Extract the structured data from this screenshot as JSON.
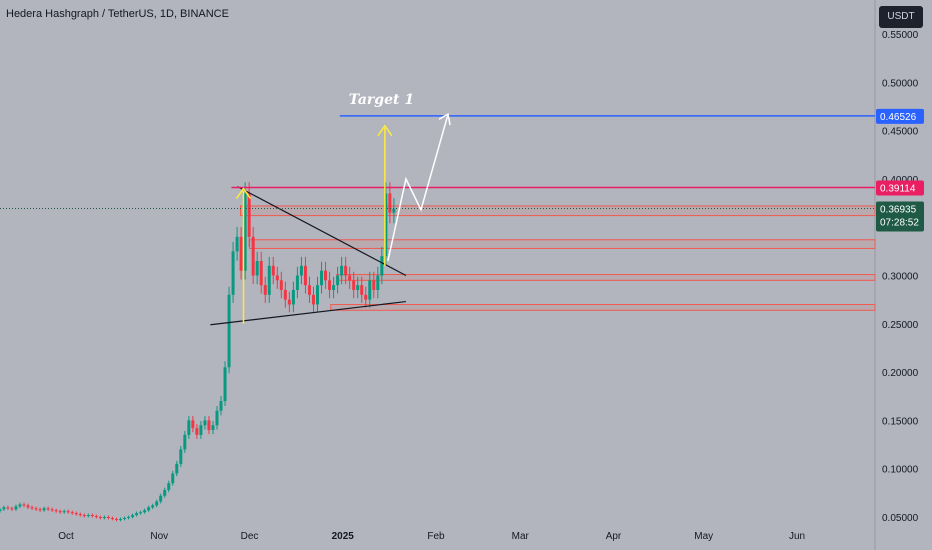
{
  "header": {
    "title": "Hedera Hashgraph / TetherUS, 1D, BINANCE",
    "currency_button": "USDT"
  },
  "colors": {
    "background": "#b2b5be",
    "up": "#089981",
    "down": "#f23645",
    "blue_line": "#2962ff",
    "pink_line": "#e91e63",
    "price_badge": "#1e5a46",
    "zone": "#f05a50",
    "yellow": "#ffeb3b",
    "white": "#ffffff",
    "trendline": "#131722"
  },
  "chart_data": {
    "type": "candlestick",
    "x_axis_labels": [
      "Oct",
      "Nov",
      "Dec",
      "2025",
      "Feb",
      "Mar",
      "Apr",
      "May",
      "Jun"
    ],
    "y_axis_labels": [
      "0.55000",
      "0.50000",
      "0.45000",
      "0.40000",
      "0.30000",
      "0.25000",
      "0.20000",
      "0.15000",
      "0.10000",
      "0.05000"
    ],
    "y_range": [
      0.04,
      0.56
    ],
    "x_range_dates": [
      "2024-09-01",
      "2025-06-25"
    ],
    "price_levels": [
      {
        "name": "target",
        "value": 0.46526,
        "color": "#2962ff"
      },
      {
        "name": "resistance",
        "value": 0.39114,
        "color": "#e91e63"
      }
    ],
    "last_price": {
      "value": "0.36935",
      "countdown": "07:28:52"
    },
    "annotation": {
      "text": "Target 1"
    },
    "support_resistance_zones": [
      {
        "low": 0.362,
        "high": 0.372
      },
      {
        "low": 0.328,
        "high": 0.337
      },
      {
        "low": 0.295,
        "high": 0.301
      },
      {
        "low": 0.264,
        "high": 0.27
      }
    ],
    "candles_close": [
      0.052,
      0.054,
      0.055,
      0.056,
      0.057,
      0.056,
      0.058,
      0.06,
      0.059,
      0.058,
      0.061,
      0.063,
      0.062,
      0.06,
      0.059,
      0.058,
      0.057,
      0.059,
      0.058,
      0.057,
      0.056,
      0.055,
      0.056,
      0.055,
      0.054,
      0.053,
      0.052,
      0.051,
      0.052,
      0.051,
      0.05,
      0.049,
      0.05,
      0.049,
      0.048,
      0.047,
      0.048,
      0.049,
      0.05,
      0.052,
      0.054,
      0.055,
      0.057,
      0.06,
      0.062,
      0.066,
      0.072,
      0.078,
      0.085,
      0.095,
      0.105,
      0.12,
      0.135,
      0.15,
      0.142,
      0.135,
      0.145,
      0.15,
      0.14,
      0.145,
      0.16,
      0.17,
      0.205,
      0.28,
      0.325,
      0.34,
      0.305,
      0.385,
      0.34,
      0.3,
      0.315,
      0.29,
      0.28,
      0.31,
      0.3,
      0.295,
      0.285,
      0.275,
      0.27,
      0.285,
      0.3,
      0.31,
      0.29,
      0.28,
      0.27,
      0.29,
      0.305,
      0.295,
      0.285,
      0.29,
      0.3,
      0.31,
      0.3,
      0.295,
      0.285,
      0.29,
      0.28,
      0.275,
      0.295,
      0.285,
      0.3,
      0.32,
      0.385,
      0.365,
      0.369
    ],
    "trendlines": [
      {
        "name": "upper",
        "from": [
          "2024-11-27",
          0.392
        ],
        "to": [
          "2025-01-22",
          0.3
        ]
      },
      {
        "name": "lower",
        "from": [
          "2024-11-18",
          0.249
        ],
        "to": [
          "2025-01-22",
          0.273
        ]
      }
    ]
  }
}
